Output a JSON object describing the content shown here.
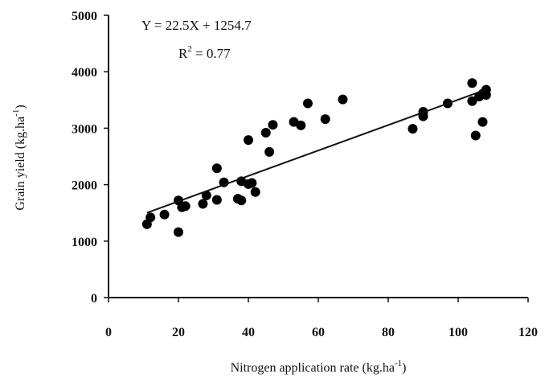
{
  "chart_data": {
    "type": "scatter",
    "xlabel": "Nitrogen application rate (kg.ha-1)",
    "ylabel": "Grain yield (kg.ha-1)",
    "xlim": [
      0,
      120
    ],
    "ylim": [
      0,
      5000
    ],
    "x_ticks": [
      "0",
      "20",
      "40",
      "60",
      "80",
      "100",
      "120"
    ],
    "y_ticks": [
      "0",
      "1000",
      "2000",
      "3000",
      "4000",
      "5000"
    ],
    "grid": false,
    "points": [
      [
        11,
        1300
      ],
      [
        12,
        1420
      ],
      [
        16,
        1470
      ],
      [
        20,
        1160
      ],
      [
        20,
        1720
      ],
      [
        21,
        1600
      ],
      [
        22,
        1620
      ],
      [
        27,
        1660
      ],
      [
        28,
        1810
      ],
      [
        31,
        1730
      ],
      [
        31,
        2290
      ],
      [
        33,
        2040
      ],
      [
        37,
        1750
      ],
      [
        38,
        2060
      ],
      [
        38,
        1720
      ],
      [
        40,
        2010
      ],
      [
        40,
        2790
      ],
      [
        41,
        2030
      ],
      [
        42,
        1870
      ],
      [
        45,
        2920
      ],
      [
        46,
        2580
      ],
      [
        47,
        3060
      ],
      [
        53,
        3110
      ],
      [
        55,
        3050
      ],
      [
        57,
        3440
      ],
      [
        62,
        3160
      ],
      [
        67,
        3510
      ],
      [
        87,
        2990
      ],
      [
        90,
        3290
      ],
      [
        90,
        3210
      ],
      [
        97,
        3440
      ],
      [
        104,
        3480
      ],
      [
        104,
        3800
      ],
      [
        105,
        2870
      ],
      [
        106,
        3560
      ],
      [
        107,
        3110
      ],
      [
        107,
        3610
      ],
      [
        108,
        3590
      ],
      [
        108,
        3680
      ]
    ],
    "fit_line": {
      "slope": 22.5,
      "intercept": 1254.7,
      "x_range": [
        11,
        108
      ]
    },
    "annotations": {
      "equation": "Y = 22.5X + 1254.7",
      "r2_label": "R",
      "r2_sup": "2",
      "r2_value": " = 0.77"
    },
    "axis_titles": {
      "x_main": "Nitrogen application rate (kg.ha",
      "x_sup": "-1",
      "x_end": ")",
      "y_main": "Grain yield (kg.ha",
      "y_sup": "-1",
      "y_end": ")"
    }
  }
}
